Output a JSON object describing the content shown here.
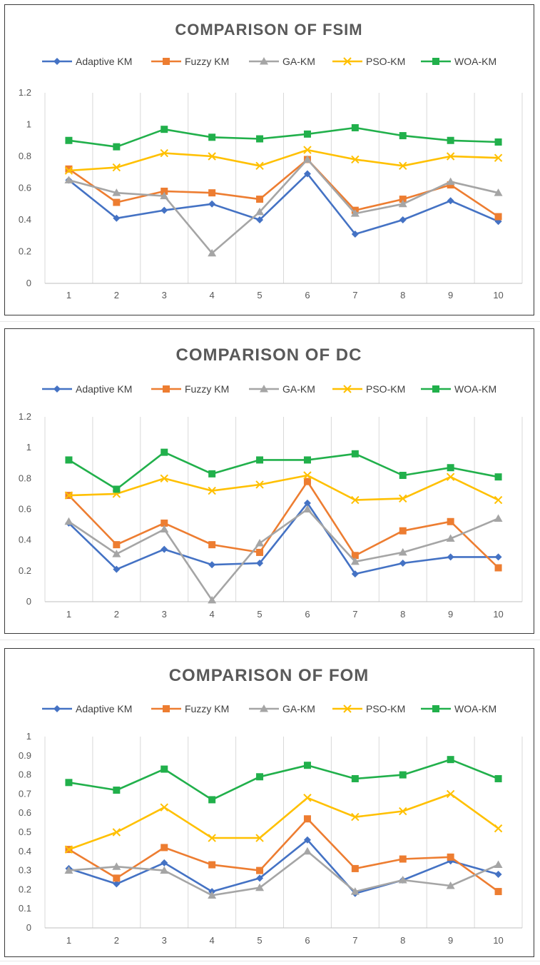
{
  "colors": {
    "Adaptive KM": "#4472c4",
    "Fuzzy KM": "#ed7d31",
    "GA-KM": "#a5a5a5",
    "PSO-KM": "#ffc000",
    "WOA-KM": "#21b04b"
  },
  "chart_data": [
    {
      "type": "line",
      "title": "COMPARISON OF FSIM",
      "categories": [
        "1",
        "2",
        "3",
        "4",
        "5",
        "6",
        "7",
        "8",
        "9",
        "10"
      ],
      "ylim": [
        0,
        1.2
      ],
      "yticks": [
        "0",
        "0.2",
        "0.4",
        "0.6",
        "0.8",
        "1",
        "1.2"
      ],
      "grid": "vertical",
      "legend": "top",
      "series": [
        {
          "name": "Adaptive KM",
          "marker": "diamond",
          "values": [
            0.65,
            0.41,
            0.46,
            0.5,
            0.4,
            0.69,
            0.31,
            0.4,
            0.52,
            0.39
          ]
        },
        {
          "name": "Fuzzy KM",
          "marker": "square",
          "values": [
            0.72,
            0.51,
            0.58,
            0.57,
            0.53,
            0.78,
            0.46,
            0.53,
            0.62,
            0.42
          ]
        },
        {
          "name": "GA-KM",
          "marker": "triangle",
          "values": [
            0.65,
            0.57,
            0.55,
            0.19,
            0.45,
            0.78,
            0.44,
            0.5,
            0.64,
            0.57
          ]
        },
        {
          "name": "PSO-KM",
          "marker": "x",
          "values": [
            0.71,
            0.73,
            0.82,
            0.8,
            0.74,
            0.84,
            0.78,
            0.74,
            0.8,
            0.79
          ]
        },
        {
          "name": "WOA-KM",
          "marker": "square",
          "values": [
            0.9,
            0.86,
            0.97,
            0.92,
            0.91,
            0.94,
            0.98,
            0.93,
            0.9,
            0.89
          ]
        }
      ]
    },
    {
      "type": "line",
      "title": "COMPARISON OF DC",
      "categories": [
        "1",
        "2",
        "3",
        "4",
        "5",
        "6",
        "7",
        "8",
        "9",
        "10"
      ],
      "ylim": [
        0,
        1.2
      ],
      "yticks": [
        "0",
        "0.2",
        "0.4",
        "0.6",
        "0.8",
        "1",
        "1.2"
      ],
      "grid": "vertical",
      "legend": "top",
      "series": [
        {
          "name": "Adaptive KM",
          "marker": "diamond",
          "values": [
            0.51,
            0.21,
            0.34,
            0.24,
            0.25,
            0.64,
            0.18,
            0.25,
            0.29,
            0.29
          ]
        },
        {
          "name": "Fuzzy KM",
          "marker": "square",
          "values": [
            0.69,
            0.37,
            0.51,
            0.37,
            0.32,
            0.78,
            0.3,
            0.46,
            0.52,
            0.22
          ]
        },
        {
          "name": "GA-KM",
          "marker": "triangle",
          "values": [
            0.52,
            0.31,
            0.47,
            0.01,
            0.38,
            0.6,
            0.26,
            0.32,
            0.41,
            0.54
          ]
        },
        {
          "name": "PSO-KM",
          "marker": "x",
          "values": [
            0.69,
            0.7,
            0.8,
            0.72,
            0.76,
            0.82,
            0.66,
            0.67,
            0.81,
            0.66
          ]
        },
        {
          "name": "WOA-KM",
          "marker": "square",
          "values": [
            0.92,
            0.73,
            0.97,
            0.83,
            0.92,
            0.92,
            0.96,
            0.82,
            0.87,
            0.81
          ]
        }
      ]
    },
    {
      "type": "line",
      "title": "COMPARISON OF FOM",
      "categories": [
        "1",
        "2",
        "3",
        "4",
        "5",
        "6",
        "7",
        "8",
        "9",
        "10"
      ],
      "ylim": [
        0,
        1
      ],
      "yticks": [
        "0",
        "0.1",
        "0.2",
        "0.3",
        "0.4",
        "0.5",
        "0.6",
        "0.7",
        "0.8",
        "0.9",
        "1"
      ],
      "grid": "vertical",
      "legend": "top",
      "series": [
        {
          "name": "Adaptive KM",
          "marker": "diamond",
          "values": [
            0.31,
            0.23,
            0.34,
            0.19,
            0.26,
            0.46,
            0.18,
            0.25,
            0.35,
            0.28
          ]
        },
        {
          "name": "Fuzzy KM",
          "marker": "square",
          "values": [
            0.41,
            0.26,
            0.42,
            0.33,
            0.3,
            0.57,
            0.31,
            0.36,
            0.37,
            0.19
          ]
        },
        {
          "name": "GA-KM",
          "marker": "triangle",
          "values": [
            0.3,
            0.32,
            0.3,
            0.17,
            0.21,
            0.4,
            0.19,
            0.25,
            0.22,
            0.33
          ]
        },
        {
          "name": "PSO-KM",
          "marker": "x",
          "values": [
            0.41,
            0.5,
            0.63,
            0.47,
            0.47,
            0.68,
            0.58,
            0.61,
            0.7,
            0.52
          ]
        },
        {
          "name": "WOA-KM",
          "marker": "square",
          "values": [
            0.76,
            0.72,
            0.83,
            0.67,
            0.79,
            0.85,
            0.78,
            0.8,
            0.88,
            0.78
          ]
        }
      ]
    }
  ]
}
